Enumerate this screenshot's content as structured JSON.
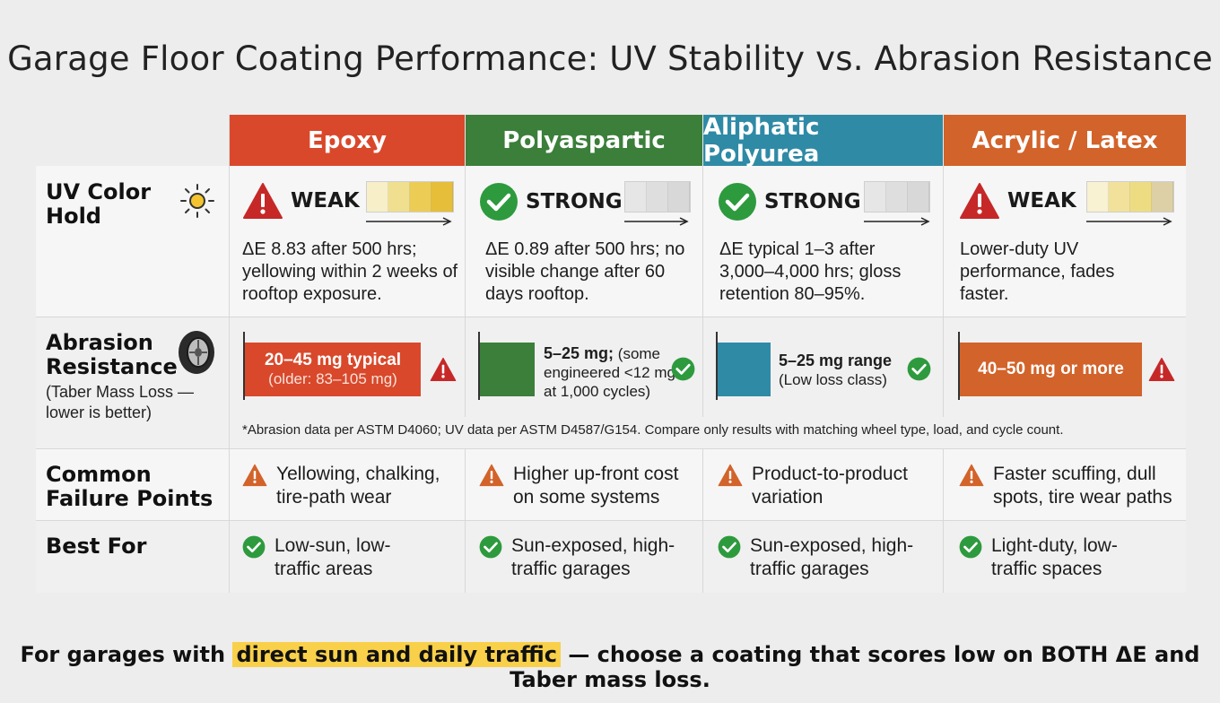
{
  "title": "Garage Floor Coating Performance: UV Stability vs. Abrasion Resistance",
  "colors": {
    "epoxy": "#d9482b",
    "polyaspartic": "#3b7f3a",
    "polyurea": "#2f8aa6",
    "acrylic": "#d2632a",
    "weak": "#c62828",
    "strong": "#2e9a3e",
    "warning": "#d2632a",
    "highlight": "#f9d04a"
  },
  "columns": [
    {
      "name": "Epoxy"
    },
    {
      "name": "Polyaspartic"
    },
    {
      "name": "Aliphatic Polyurea"
    },
    {
      "name": "Acrylic / Latex"
    }
  ],
  "rows": {
    "uv": {
      "label": "UV Color Hold",
      "icon": "sun-icon"
    },
    "abrasion": {
      "label": "Abrasion Resistance",
      "sub": "(Taber Mass Loss — lower is better)",
      "icon": "tire-icon"
    },
    "failure": {
      "label": "Common Failure Points"
    },
    "best": {
      "label": "Best For"
    }
  },
  "uv": [
    {
      "status": "WEAK",
      "status_icon": "warning-triangle-icon",
      "swatches": [
        "#f6efc8",
        "#efdf8e",
        "#eccc55",
        "#e6be39"
      ],
      "text": "ΔE 8.83 after 500 hrs; yellowing within 2 weeks of rooftop exposure."
    },
    {
      "status": "STRONG",
      "status_icon": "check-circle-icon",
      "swatches": [
        "#e6e6e6",
        "#dedede",
        "#d8d8d8"
      ],
      "text": "ΔE 0.89 after 500 hrs; no visible change after 60 days rooftop."
    },
    {
      "status": "STRONG",
      "status_icon": "check-circle-icon",
      "swatches": [
        "#e6e6e6",
        "#dedede",
        "#d8d8d8"
      ],
      "text": "ΔE typical 1–3 after 3,000–4,000 hrs; gloss retention 80–95%."
    },
    {
      "status": "WEAK",
      "status_icon": "warning-triangle-icon",
      "swatches": [
        "#f8f1d2",
        "#f1e19b",
        "#eedc83",
        "#e8cf74",
        "#ddd0a6"
      ],
      "text": "Lower-duty UV performance, fades faster."
    }
  ],
  "abrasion": [
    {
      "bar_main": "20–45 mg typical",
      "bar_sub": "(older: 83–105 mg)",
      "detail_main": "",
      "detail_sub": "",
      "status_icon": "warning-triangle-icon"
    },
    {
      "bar_main": "",
      "bar_sub": "",
      "detail_main": "5–25 mg;",
      "detail_sub": "(some engineered <12 mg at 1,000 cycles)",
      "status_icon": "check-circle-icon"
    },
    {
      "bar_main": "",
      "bar_sub": "",
      "detail_main": "5–25 mg range",
      "detail_sub": "(Low loss class)",
      "status_icon": "check-circle-icon"
    },
    {
      "bar_main": "40–50 mg or more",
      "bar_sub": "",
      "detail_main": "",
      "detail_sub": "",
      "status_icon": "warning-triangle-icon"
    }
  ],
  "footnote": "*Abrasion data per ASTM D4060; UV data per ASTM D4587/G154. Compare only results with matching wheel type, load, and cycle count.",
  "failure": [
    "Yellowing, chalking, tire-path wear",
    "Higher up-front cost on some systems",
    "Product-to-product variation",
    "Faster scuffing, dull spots, tire wear paths"
  ],
  "best": [
    "Low-sun, low-traffic areas",
    "Sun-exposed, high-traffic garages",
    "Sun-exposed, high-traffic garages",
    "Light-duty, low-traffic spaces"
  ],
  "bottom": {
    "before": "For garages with ",
    "highlight": "direct sun and daily traffic",
    "after": " — choose a coating that scores low on BOTH ΔE and Taber mass loss."
  }
}
